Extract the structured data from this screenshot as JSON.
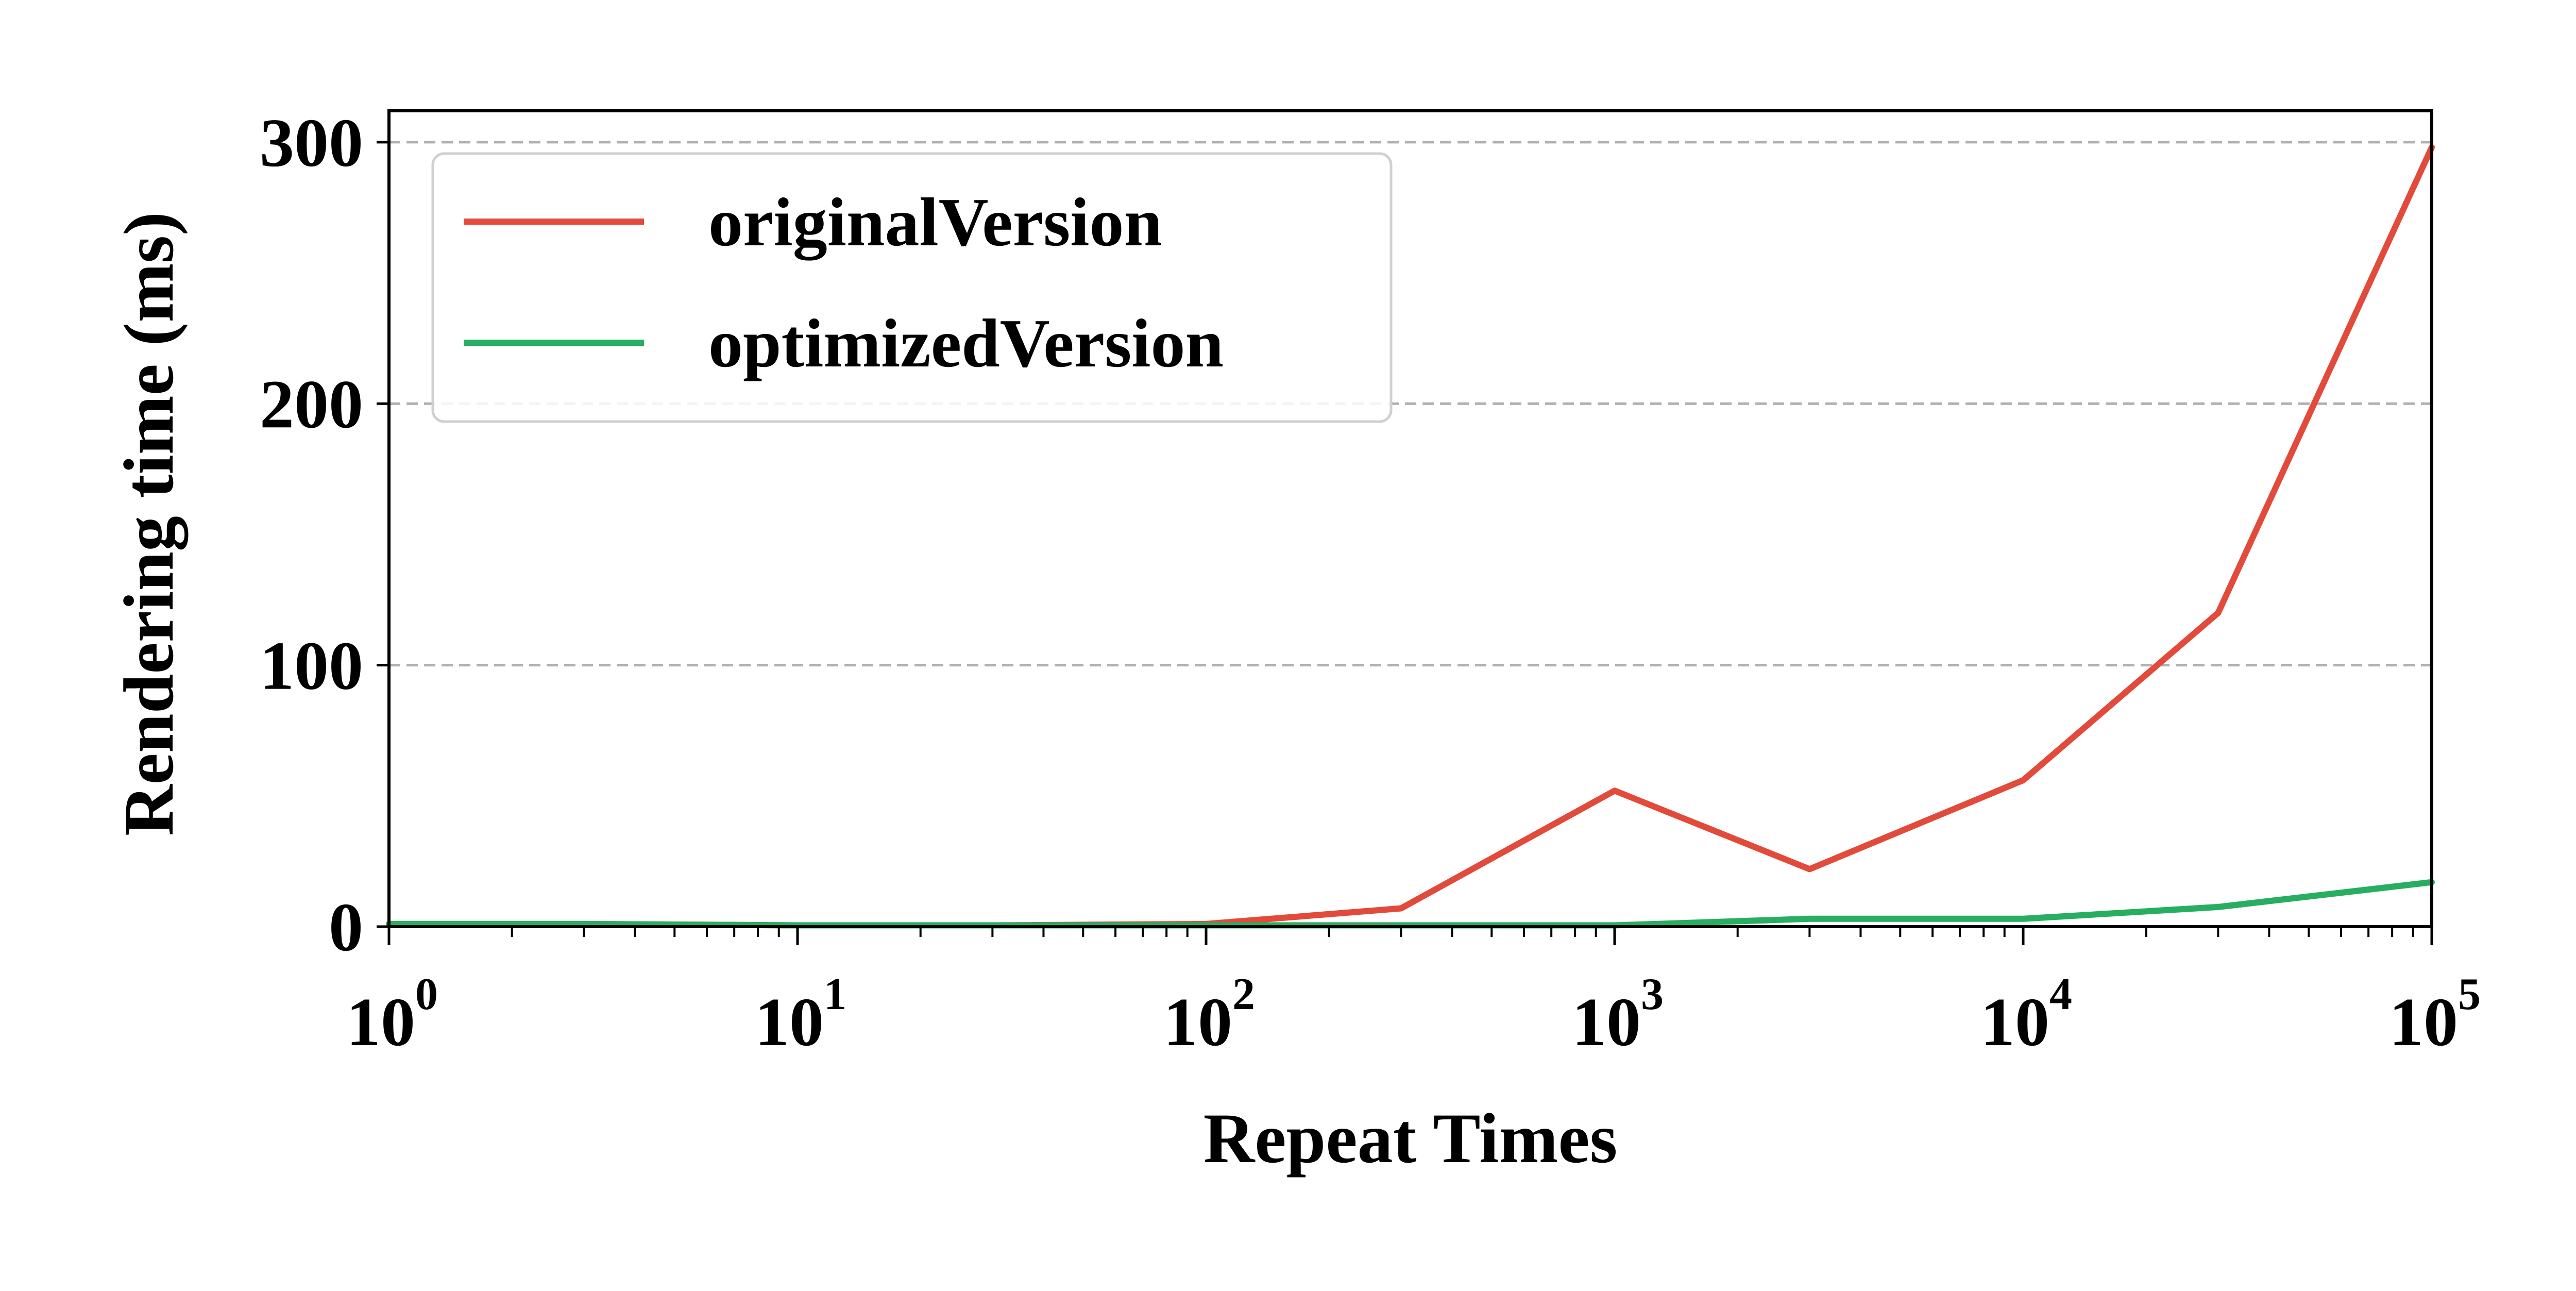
{
  "chart_data": {
    "type": "line",
    "title": "",
    "xlabel": "Repeat Times",
    "ylabel": "Rendering time (ms)",
    "x_scale": "log",
    "xlim": [
      1,
      100000
    ],
    "ylim": [
      0,
      312
    ],
    "grid": "horizontal-dashed",
    "legend_position": "top-left",
    "x_ticks": [
      {
        "base": "10",
        "exp": "0",
        "value": 1
      },
      {
        "base": "10",
        "exp": "1",
        "value": 10
      },
      {
        "base": "10",
        "exp": "2",
        "value": 100
      },
      {
        "base": "10",
        "exp": "3",
        "value": 1000
      },
      {
        "base": "10",
        "exp": "4",
        "value": 10000
      },
      {
        "base": "10",
        "exp": "5",
        "value": 100000
      }
    ],
    "y_ticks": [
      {
        "label": "0",
        "value": 0
      },
      {
        "label": "100",
        "value": 100
      },
      {
        "label": "200",
        "value": 200
      },
      {
        "label": "300",
        "value": 300
      }
    ],
    "x": [
      1,
      3,
      10,
      30,
      100,
      300,
      1000,
      3000,
      10000,
      30000,
      100000
    ],
    "series": [
      {
        "name": "originalVersion",
        "color": "#e24a3b",
        "values": [
          1,
          1,
          0.5,
          0.5,
          1,
          7,
          52,
          22,
          56,
          120,
          298
        ]
      },
      {
        "name": "optimizedVersion",
        "color": "#27ae60",
        "values": [
          1,
          1,
          0.5,
          0.5,
          0.5,
          0.5,
          0.5,
          3,
          3,
          7.5,
          17
        ]
      }
    ]
  }
}
